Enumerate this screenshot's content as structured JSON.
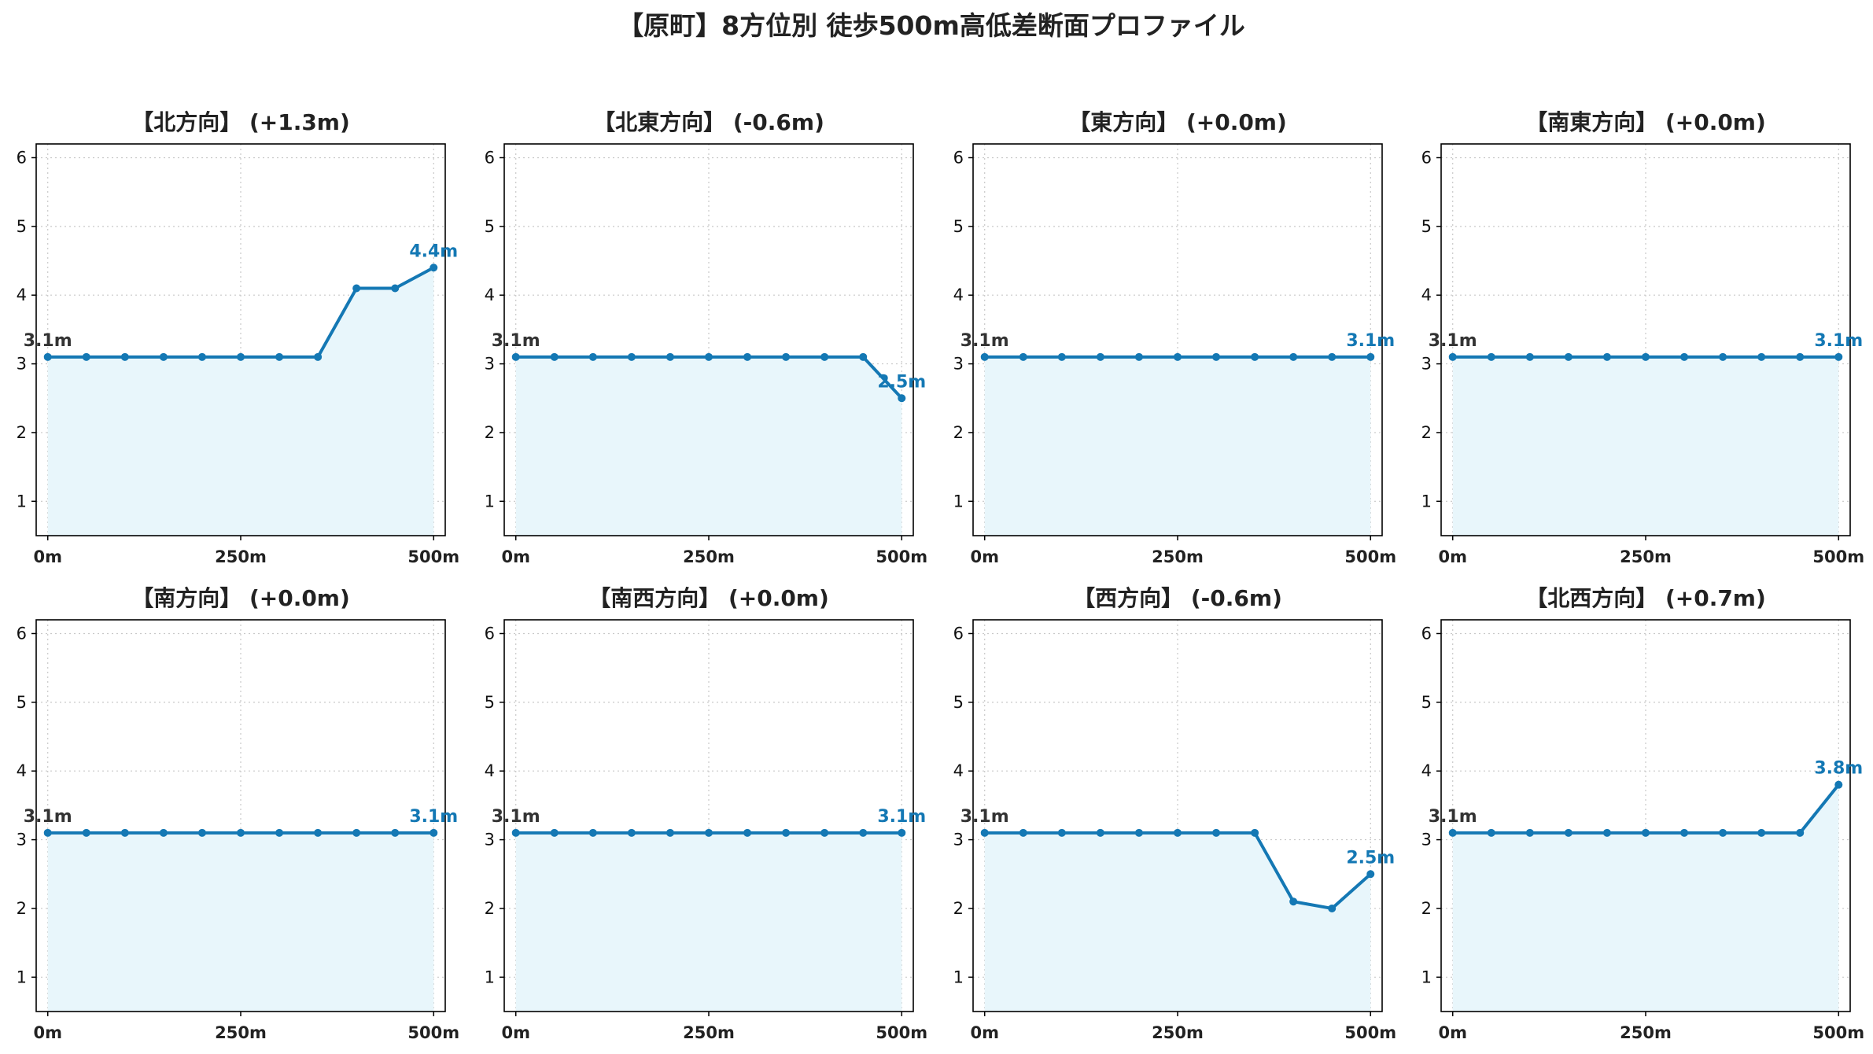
{
  "title": "【原町】8方位別 徒歩500m高低差断面プロファイル",
  "colors": {
    "line": "#1478b4",
    "fill": "#e8f6fb",
    "start_label": "#333333",
    "end_label": "#1478b4"
  },
  "chart_data": [
    {
      "type": "area",
      "title": "【北方向】 (+1.3m)",
      "x": [
        0,
        50,
        100,
        150,
        200,
        250,
        300,
        350,
        400,
        450,
        500
      ],
      "y": [
        3.1,
        3.1,
        3.1,
        3.1,
        3.1,
        3.1,
        3.1,
        3.1,
        4.1,
        4.1,
        4.4
      ],
      "start_label": "3.1m",
      "end_label": "4.4m",
      "xticks": [
        "0m",
        "250m",
        "500m"
      ],
      "yticks": [
        "1",
        "2",
        "3",
        "4",
        "5",
        "6"
      ],
      "xlim": [
        -15,
        515
      ],
      "ylim": [
        0.5,
        6.2
      ],
      "grid": true
    },
    {
      "type": "area",
      "title": "【北東方向】 (-0.6m)",
      "x": [
        0,
        50,
        100,
        150,
        200,
        250,
        300,
        350,
        400,
        450,
        500
      ],
      "y": [
        3.1,
        3.1,
        3.1,
        3.1,
        3.1,
        3.1,
        3.1,
        3.1,
        3.1,
        3.1,
        2.5
      ],
      "start_label": "3.1m",
      "end_label": "2.5m",
      "xticks": [
        "0m",
        "250m",
        "500m"
      ],
      "yticks": [
        "1",
        "2",
        "3",
        "4",
        "5",
        "6"
      ],
      "xlim": [
        -15,
        515
      ],
      "ylim": [
        0.5,
        6.2
      ],
      "grid": true
    },
    {
      "type": "area",
      "title": "【東方向】 (+0.0m)",
      "x": [
        0,
        50,
        100,
        150,
        200,
        250,
        300,
        350,
        400,
        450,
        500
      ],
      "y": [
        3.1,
        3.1,
        3.1,
        3.1,
        3.1,
        3.1,
        3.1,
        3.1,
        3.1,
        3.1,
        3.1
      ],
      "start_label": "3.1m",
      "end_label": "3.1m",
      "xticks": [
        "0m",
        "250m",
        "500m"
      ],
      "yticks": [
        "1",
        "2",
        "3",
        "4",
        "5",
        "6"
      ],
      "xlim": [
        -15,
        515
      ],
      "ylim": [
        0.5,
        6.2
      ],
      "grid": true
    },
    {
      "type": "area",
      "title": "【南東方向】 (+0.0m)",
      "x": [
        0,
        50,
        100,
        150,
        200,
        250,
        300,
        350,
        400,
        450,
        500
      ],
      "y": [
        3.1,
        3.1,
        3.1,
        3.1,
        3.1,
        3.1,
        3.1,
        3.1,
        3.1,
        3.1,
        3.1
      ],
      "start_label": "3.1m",
      "end_label": "3.1m",
      "xticks": [
        "0m",
        "250m",
        "500m"
      ],
      "yticks": [
        "1",
        "2",
        "3",
        "4",
        "5",
        "6"
      ],
      "xlim": [
        -15,
        515
      ],
      "ylim": [
        0.5,
        6.2
      ],
      "grid": true
    },
    {
      "type": "area",
      "title": "【南方向】 (+0.0m)",
      "x": [
        0,
        50,
        100,
        150,
        200,
        250,
        300,
        350,
        400,
        450,
        500
      ],
      "y": [
        3.1,
        3.1,
        3.1,
        3.1,
        3.1,
        3.1,
        3.1,
        3.1,
        3.1,
        3.1,
        3.1
      ],
      "start_label": "3.1m",
      "end_label": "3.1m",
      "xticks": [
        "0m",
        "250m",
        "500m"
      ],
      "yticks": [
        "1",
        "2",
        "3",
        "4",
        "5",
        "6"
      ],
      "xlim": [
        -15,
        515
      ],
      "ylim": [
        0.5,
        6.2
      ],
      "grid": true
    },
    {
      "type": "area",
      "title": "【南西方向】 (+0.0m)",
      "x": [
        0,
        50,
        100,
        150,
        200,
        250,
        300,
        350,
        400,
        450,
        500
      ],
      "y": [
        3.1,
        3.1,
        3.1,
        3.1,
        3.1,
        3.1,
        3.1,
        3.1,
        3.1,
        3.1,
        3.1
      ],
      "start_label": "3.1m",
      "end_label": "3.1m",
      "xticks": [
        "0m",
        "250m",
        "500m"
      ],
      "yticks": [
        "1",
        "2",
        "3",
        "4",
        "5",
        "6"
      ],
      "xlim": [
        -15,
        515
      ],
      "ylim": [
        0.5,
        6.2
      ],
      "grid": true
    },
    {
      "type": "area",
      "title": "【西方向】 (-0.6m)",
      "x": [
        0,
        50,
        100,
        150,
        200,
        250,
        300,
        350,
        400,
        450,
        500
      ],
      "y": [
        3.1,
        3.1,
        3.1,
        3.1,
        3.1,
        3.1,
        3.1,
        3.1,
        2.1,
        2.0,
        2.5
      ],
      "start_label": "3.1m",
      "end_label": "2.5m",
      "xticks": [
        "0m",
        "250m",
        "500m"
      ],
      "yticks": [
        "1",
        "2",
        "3",
        "4",
        "5",
        "6"
      ],
      "xlim": [
        -15,
        515
      ],
      "ylim": [
        0.5,
        6.2
      ],
      "grid": true
    },
    {
      "type": "area",
      "title": "【北西方向】 (+0.7m)",
      "x": [
        0,
        50,
        100,
        150,
        200,
        250,
        300,
        350,
        400,
        450,
        500
      ],
      "y": [
        3.1,
        3.1,
        3.1,
        3.1,
        3.1,
        3.1,
        3.1,
        3.1,
        3.1,
        3.1,
        3.8
      ],
      "start_label": "3.1m",
      "end_label": "3.8m",
      "xticks": [
        "0m",
        "250m",
        "500m"
      ],
      "yticks": [
        "1",
        "2",
        "3",
        "4",
        "5",
        "6"
      ],
      "xlim": [
        -15,
        515
      ],
      "ylim": [
        0.5,
        6.2
      ],
      "grid": true
    }
  ]
}
